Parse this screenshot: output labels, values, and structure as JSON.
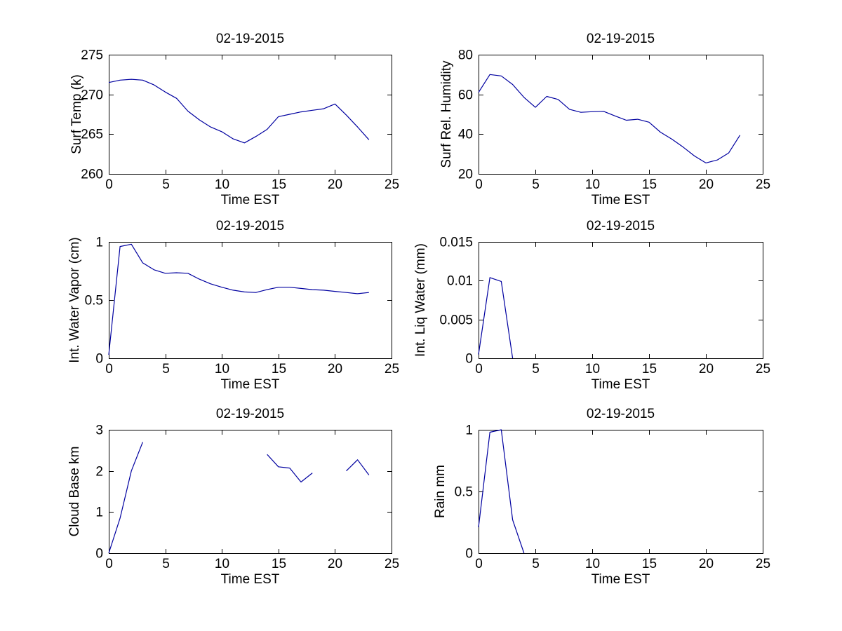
{
  "figure": {
    "background": "#ffffff",
    "axis_color": "#000000",
    "line_color": "#0000a0",
    "font_color": "#000000"
  },
  "chart_data": [
    {
      "type": "line",
      "title": "02-19-2015",
      "xlabel": "Time EST",
      "ylabel": "Surf Temp (k)",
      "xlim": [
        0,
        25
      ],
      "ylim": [
        260,
        275
      ],
      "xticks": [
        0,
        5,
        10,
        15,
        20,
        25
      ],
      "yticks": [
        260,
        265,
        270,
        275
      ],
      "grid": false,
      "legend": null,
      "x": [
        0,
        1,
        2,
        3,
        4,
        5,
        6,
        7,
        8,
        9,
        10,
        11,
        12,
        13,
        14,
        15,
        16,
        17,
        18,
        19,
        20,
        21,
        22,
        23
      ],
      "values": [
        271.5,
        271.8,
        271.9,
        271.8,
        271.2,
        270.3,
        269.5,
        267.9,
        266.8,
        265.9,
        265.3,
        264.4,
        263.9,
        264.7,
        265.6,
        267.2,
        267.5,
        267.8,
        268.0,
        268.2,
        268.8,
        267.4,
        265.9,
        264.3
      ]
    },
    {
      "type": "line",
      "title": "02-19-2015",
      "xlabel": "Time EST",
      "ylabel": "Surf Rel. Humidity",
      "xlim": [
        0,
        25
      ],
      "ylim": [
        20,
        80
      ],
      "xticks": [
        0,
        5,
        10,
        15,
        20,
        25
      ],
      "yticks": [
        20,
        40,
        60,
        80
      ],
      "grid": false,
      "legend": null,
      "x": [
        0,
        1,
        2,
        3,
        4,
        5,
        6,
        7,
        8,
        9,
        10,
        11,
        12,
        13,
        14,
        15,
        16,
        17,
        18,
        19,
        20,
        21,
        22,
        23
      ],
      "values": [
        61,
        70,
        69.3,
        65,
        58.5,
        53.5,
        59,
        57.5,
        52.5,
        51,
        51.3,
        51.5,
        49.2,
        47,
        47.5,
        46,
        41,
        37.5,
        33.5,
        29,
        25.5,
        27,
        30.5,
        39.5
      ]
    },
    {
      "type": "line",
      "title": "02-19-2015",
      "xlabel": "Time EST",
      "ylabel": "Int. Water Vapor (cm)",
      "xlim": [
        0,
        25
      ],
      "ylim": [
        0,
        1
      ],
      "xticks": [
        0,
        5,
        10,
        15,
        20,
        25
      ],
      "yticks": [
        0,
        0.5,
        1
      ],
      "grid": false,
      "legend": null,
      "x": [
        0,
        1,
        2,
        3,
        4,
        5,
        6,
        7,
        8,
        9,
        10,
        11,
        12,
        13,
        14,
        15,
        16,
        17,
        18,
        19,
        20,
        21,
        22,
        23
      ],
      "values": [
        0.03,
        0.96,
        0.98,
        0.82,
        0.76,
        0.73,
        0.735,
        0.73,
        0.68,
        0.64,
        0.61,
        0.585,
        0.57,
        0.565,
        0.59,
        0.61,
        0.61,
        0.6,
        0.59,
        0.585,
        0.575,
        0.565,
        0.555,
        0.565
      ]
    },
    {
      "type": "line",
      "title": "02-19-2015",
      "xlabel": "Time EST",
      "ylabel": "Int. Liq Water (mm)",
      "xlim": [
        0,
        25
      ],
      "ylim": [
        0,
        0.015
      ],
      "xticks": [
        0,
        5,
        10,
        15,
        20,
        25
      ],
      "yticks": [
        0,
        0.005,
        0.01,
        0.015
      ],
      "grid": false,
      "legend": null,
      "x": [
        0,
        1,
        2,
        3,
        4,
        5,
        6,
        7,
        8,
        9,
        10,
        11,
        12,
        13,
        14,
        15,
        16,
        17,
        18,
        19,
        20,
        21,
        22,
        23
      ],
      "values": [
        0.0005,
        0.0104,
        0.0099,
        0,
        null,
        null,
        null,
        null,
        null,
        null,
        null,
        null,
        null,
        null,
        null,
        null,
        null,
        null,
        null,
        null,
        null,
        null,
        null,
        null
      ]
    },
    {
      "type": "line",
      "title": "02-19-2015",
      "xlabel": "Time EST",
      "ylabel": "Cloud Base km",
      "xlim": [
        0,
        25
      ],
      "ylim": [
        0,
        3
      ],
      "xticks": [
        0,
        5,
        10,
        15,
        20,
        25
      ],
      "yticks": [
        0,
        1,
        2,
        3
      ],
      "grid": false,
      "legend": null,
      "x": [
        0,
        1,
        2,
        3,
        4,
        5,
        6,
        7,
        8,
        9,
        10,
        11,
        12,
        13,
        14,
        15,
        16,
        17,
        18,
        19,
        20,
        21,
        22,
        23
      ],
      "values": [
        0,
        0.85,
        2.0,
        2.7,
        null,
        null,
        null,
        null,
        null,
        null,
        null,
        null,
        null,
        null,
        2.4,
        2.1,
        2.07,
        1.73,
        1.95,
        null,
        null,
        2.0,
        2.27,
        1.9
      ]
    },
    {
      "type": "line",
      "title": "02-19-2015",
      "xlabel": "Time EST",
      "ylabel": "Rain mm",
      "xlim": [
        0,
        25
      ],
      "ylim": [
        0,
        1
      ],
      "xticks": [
        0,
        5,
        10,
        15,
        20,
        25
      ],
      "yticks": [
        0,
        0.5,
        1
      ],
      "grid": false,
      "legend": null,
      "x": [
        0,
        1,
        2,
        3,
        4,
        5,
        6,
        7,
        8,
        9,
        10,
        11,
        12,
        13,
        14,
        15,
        16,
        17,
        18,
        19,
        20,
        21,
        22,
        23
      ],
      "values": [
        0.21,
        0.98,
        1.0,
        0.27,
        0,
        null,
        null,
        null,
        null,
        null,
        null,
        null,
        null,
        null,
        null,
        null,
        null,
        null,
        null,
        null,
        null,
        null,
        null,
        null
      ]
    }
  ]
}
